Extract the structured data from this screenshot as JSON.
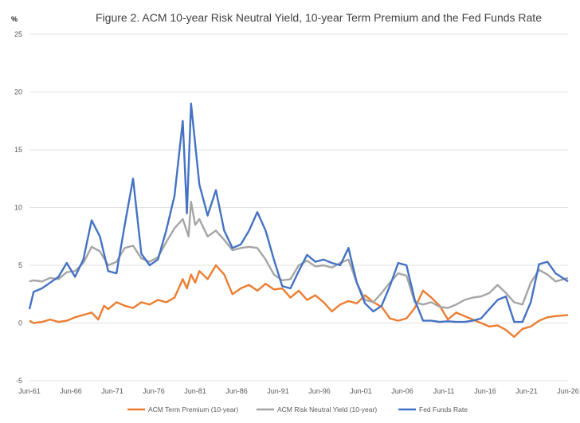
{
  "chart_data": {
    "type": "line",
    "title": "Figure 2. ACM 10-year Risk Neutral Yield, 10-year Term Premium and the Fed Funds Rate",
    "ylabel": "%",
    "xlabel": "",
    "ylim": [
      -5,
      25
    ],
    "yticks": [
      "25",
      "20",
      "15",
      "10",
      "5",
      "0",
      "-5"
    ],
    "xlim": [
      1961.5,
      2026.5
    ],
    "xticks": [
      "Jun-61",
      "Jun-66",
      "Jun-71",
      "Jun-76",
      "Jun-81",
      "Jun-86",
      "Jun-91",
      "Jun-96",
      "Jun-01",
      "Jun-06",
      "Jun-11",
      "Jun-16",
      "Jun-21",
      "Jun-26"
    ],
    "grid": "horizontal",
    "legend_position": "bottom",
    "series": [
      {
        "name": "ACM Term Premium (10-year)",
        "color": "#ED7D31",
        "points": [
          [
            1961.5,
            0.2
          ],
          [
            1962,
            0.0
          ],
          [
            1963,
            0.1
          ],
          [
            1964,
            0.3
          ],
          [
            1965,
            0.1
          ],
          [
            1966,
            0.2
          ],
          [
            1967,
            0.5
          ],
          [
            1968,
            0.7
          ],
          [
            1969,
            0.9
          ],
          [
            1969.8,
            0.3
          ],
          [
            1970.5,
            1.5
          ],
          [
            1971,
            1.2
          ],
          [
            1972,
            1.8
          ],
          [
            1973,
            1.5
          ],
          [
            1974,
            1.3
          ],
          [
            1975,
            1.8
          ],
          [
            1976,
            1.6
          ],
          [
            1977,
            2.0
          ],
          [
            1978,
            1.8
          ],
          [
            1979,
            2.2
          ],
          [
            1980,
            3.8
          ],
          [
            1980.5,
            3.0
          ],
          [
            1981,
            4.2
          ],
          [
            1981.5,
            3.5
          ],
          [
            1982,
            4.5
          ],
          [
            1983,
            3.8
          ],
          [
            1984,
            5.0
          ],
          [
            1985,
            4.2
          ],
          [
            1986,
            2.5
          ],
          [
            1987,
            3.0
          ],
          [
            1988,
            3.3
          ],
          [
            1989,
            2.8
          ],
          [
            1990,
            3.4
          ],
          [
            1991,
            2.9
          ],
          [
            1992,
            3.0
          ],
          [
            1993,
            2.2
          ],
          [
            1994,
            2.8
          ],
          [
            1995,
            2.0
          ],
          [
            1996,
            2.4
          ],
          [
            1997,
            1.8
          ],
          [
            1998,
            1.0
          ],
          [
            1999,
            1.6
          ],
          [
            2000,
            1.9
          ],
          [
            2001,
            1.7
          ],
          [
            2002,
            2.4
          ],
          [
            2003,
            1.8
          ],
          [
            2004,
            1.4
          ],
          [
            2005,
            0.4
          ],
          [
            2006,
            0.2
          ],
          [
            2007,
            0.4
          ],
          [
            2008,
            1.3
          ],
          [
            2009,
            2.8
          ],
          [
            2010,
            2.2
          ],
          [
            2011,
            1.5
          ],
          [
            2012,
            0.3
          ],
          [
            2013,
            0.9
          ],
          [
            2014,
            0.6
          ],
          [
            2015,
            0.3
          ],
          [
            2016,
            0.0
          ],
          [
            2017,
            -0.3
          ],
          [
            2018,
            -0.2
          ],
          [
            2019,
            -0.6
          ],
          [
            2020,
            -1.2
          ],
          [
            2021,
            -0.5
          ],
          [
            2022,
            -0.3
          ],
          [
            2023,
            0.2
          ],
          [
            2024,
            0.5
          ],
          [
            2025,
            0.6
          ],
          [
            2026.5,
            0.7
          ]
        ]
      },
      {
        "name": "ACM Risk Neutral Yield (10-year)",
        "color": "#A5A5A5",
        "points": [
          [
            1961.5,
            3.6
          ],
          [
            1962,
            3.7
          ],
          [
            1963,
            3.6
          ],
          [
            1964,
            3.9
          ],
          [
            1965,
            3.8
          ],
          [
            1966,
            4.4
          ],
          [
            1967,
            4.5
          ],
          [
            1968,
            5.2
          ],
          [
            1969,
            6.6
          ],
          [
            1970,
            6.2
          ],
          [
            1971,
            5.0
          ],
          [
            1972,
            5.3
          ],
          [
            1973,
            6.5
          ],
          [
            1974,
            6.7
          ],
          [
            1975,
            5.6
          ],
          [
            1976,
            5.3
          ],
          [
            1977,
            5.7
          ],
          [
            1978,
            7.0
          ],
          [
            1979,
            8.2
          ],
          [
            1980,
            9.0
          ],
          [
            1980.7,
            7.5
          ],
          [
            1981,
            10.5
          ],
          [
            1981.5,
            8.5
          ],
          [
            1982,
            9.0
          ],
          [
            1983,
            7.5
          ],
          [
            1984,
            8.0
          ],
          [
            1985,
            7.2
          ],
          [
            1986,
            6.3
          ],
          [
            1987,
            6.5
          ],
          [
            1988,
            6.6
          ],
          [
            1989,
            6.5
          ],
          [
            1990,
            5.5
          ],
          [
            1991,
            4.2
          ],
          [
            1992,
            3.7
          ],
          [
            1993,
            3.8
          ],
          [
            1994,
            5.0
          ],
          [
            1995,
            5.4
          ],
          [
            1996,
            4.9
          ],
          [
            1997,
            5.0
          ],
          [
            1998,
            4.8
          ],
          [
            1999,
            5.2
          ],
          [
            2000,
            5.5
          ],
          [
            2001,
            3.5
          ],
          [
            2002,
            2.0
          ],
          [
            2003,
            1.8
          ],
          [
            2004,
            2.6
          ],
          [
            2005,
            3.5
          ],
          [
            2006,
            4.3
          ],
          [
            2007,
            4.1
          ],
          [
            2008,
            1.8
          ],
          [
            2009,
            1.6
          ],
          [
            2010,
            1.8
          ],
          [
            2011,
            1.4
          ],
          [
            2012,
            1.3
          ],
          [
            2013,
            1.6
          ],
          [
            2014,
            2.0
          ],
          [
            2015,
            2.2
          ],
          [
            2016,
            2.3
          ],
          [
            2017,
            2.6
          ],
          [
            2018,
            3.3
          ],
          [
            2019,
            2.6
          ],
          [
            2020,
            1.8
          ],
          [
            2021,
            1.6
          ],
          [
            2022,
            3.5
          ],
          [
            2023,
            4.6
          ],
          [
            2024,
            4.2
          ],
          [
            2025,
            3.6
          ],
          [
            2026.5,
            3.9
          ]
        ]
      },
      {
        "name": "Fed Funds Rate",
        "color": "#4472C4",
        "points": [
          [
            1961.5,
            1.2
          ],
          [
            1962,
            2.7
          ],
          [
            1963,
            3.0
          ],
          [
            1964,
            3.5
          ],
          [
            1965,
            4.0
          ],
          [
            1966,
            5.2
          ],
          [
            1967,
            4.0
          ],
          [
            1968,
            5.5
          ],
          [
            1969,
            8.9
          ],
          [
            1970,
            7.5
          ],
          [
            1971,
            4.5
          ],
          [
            1972,
            4.3
          ],
          [
            1973,
            8.5
          ],
          [
            1974,
            12.5
          ],
          [
            1975,
            6.0
          ],
          [
            1976,
            5.0
          ],
          [
            1977,
            5.5
          ],
          [
            1978,
            8.0
          ],
          [
            1979,
            11.0
          ],
          [
            1980,
            17.5
          ],
          [
            1980.5,
            9.5
          ],
          [
            1981,
            19.0
          ],
          [
            1982,
            12.0
          ],
          [
            1983,
            9.3
          ],
          [
            1984,
            11.5
          ],
          [
            1985,
            8.0
          ],
          [
            1986,
            6.5
          ],
          [
            1987,
            6.8
          ],
          [
            1988,
            8.0
          ],
          [
            1989,
            9.6
          ],
          [
            1990,
            8.0
          ],
          [
            1991,
            5.5
          ],
          [
            1992,
            3.2
          ],
          [
            1993,
            3.0
          ],
          [
            1994,
            4.5
          ],
          [
            1995,
            5.9
          ],
          [
            1996,
            5.3
          ],
          [
            1997,
            5.5
          ],
          [
            1998,
            5.2
          ],
          [
            1999,
            5.0
          ],
          [
            2000,
            6.5
          ],
          [
            2001,
            3.5
          ],
          [
            2002,
            1.7
          ],
          [
            2003,
            1.0
          ],
          [
            2004,
            1.5
          ],
          [
            2005,
            3.2
          ],
          [
            2006,
            5.2
          ],
          [
            2007,
            5.0
          ],
          [
            2008,
            2.0
          ],
          [
            2009,
            0.2
          ],
          [
            2010,
            0.2
          ],
          [
            2011,
            0.1
          ],
          [
            2012,
            0.15
          ],
          [
            2013,
            0.1
          ],
          [
            2014,
            0.1
          ],
          [
            2015,
            0.2
          ],
          [
            2016,
            0.4
          ],
          [
            2017,
            1.2
          ],
          [
            2018,
            2.0
          ],
          [
            2019,
            2.3
          ],
          [
            2020,
            0.1
          ],
          [
            2021,
            0.1
          ],
          [
            2022,
            1.8
          ],
          [
            2023,
            5.1
          ],
          [
            2024,
            5.3
          ],
          [
            2025,
            4.3
          ],
          [
            2026.5,
            3.6
          ]
        ]
      }
    ]
  }
}
